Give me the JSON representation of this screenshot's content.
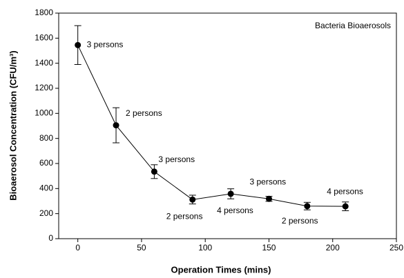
{
  "chart_data": {
    "type": "line",
    "x_label": "Operation Times (mins)",
    "y_label": "Bioaerosol Concentration (CFU/m³)",
    "label": "Bacteria Bioaerosols",
    "x": [
      0,
      30,
      60,
      90,
      120,
      150,
      180,
      210
    ],
    "series": [
      {
        "color": "#000000",
        "values": [
          1545,
          905,
          535,
          312,
          358,
          318,
          260,
          258
        ],
        "errors": [
          155,
          140,
          55,
          35,
          40,
          20,
          30,
          35
        ]
      }
    ],
    "annotations": [
      "3 persons",
      "2 persons",
      "3 persons",
      "2 persons",
      "4 persons",
      "3 persons",
      "2 persons",
      "4 persons"
    ],
    "xlim": [
      -15,
      250
    ],
    "xticks": [
      0,
      50,
      100,
      150,
      200,
      250
    ],
    "ylim": [
      0,
      1800
    ],
    "yticks": [
      0,
      200,
      400,
      600,
      800,
      1000,
      1200,
      1400,
      1600,
      1800
    ]
  }
}
